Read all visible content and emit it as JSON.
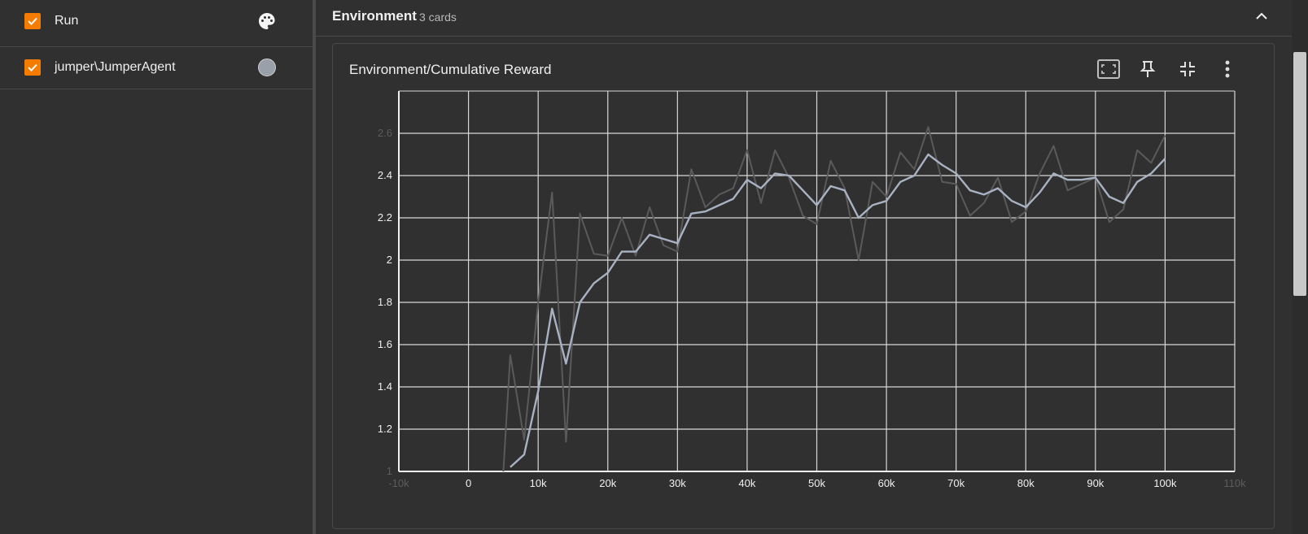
{
  "sidebar": {
    "runs": [
      {
        "label": "Run",
        "checked": true,
        "icon": "palette-icon"
      },
      {
        "label": "jumper\\JumperAgent",
        "checked": true,
        "color": "#9aa0aa"
      }
    ]
  },
  "group": {
    "title": "Environment",
    "count_label": "3 cards"
  },
  "card": {
    "title": "Environment/Cumulative Reward",
    "actions": [
      "fit-domain-icon",
      "pin-icon",
      "collapse-icon",
      "more-vert-icon"
    ]
  },
  "colors": {
    "accent": "#f57c00",
    "raw_series": "#5a5a5a",
    "smoothed_series": "#a8b2c2",
    "grid": "#d8d8d8",
    "background": "#303030"
  },
  "chart_data": {
    "type": "line",
    "title": "",
    "xlabel": "",
    "ylabel": "",
    "xlim": [
      -10000,
      110000
    ],
    "ylim": [
      1.0,
      2.8
    ],
    "x_ticks": [
      -10000,
      0,
      10000,
      20000,
      30000,
      40000,
      50000,
      60000,
      70000,
      80000,
      90000,
      100000,
      110000
    ],
    "x_tick_labels": [
      "-10k",
      "0",
      "10k",
      "20k",
      "30k",
      "40k",
      "50k",
      "60k",
      "70k",
      "80k",
      "90k",
      "100k",
      "110k"
    ],
    "y_ticks": [
      1.0,
      1.2,
      1.4,
      1.6,
      1.8,
      2.0,
      2.2,
      2.4,
      2.6
    ],
    "y_tick_labels": [
      "1",
      "1.2",
      "1.4",
      "1.6",
      "1.8",
      "2",
      "2.2",
      "2.4",
      "2.6"
    ],
    "grid": true,
    "series": [
      {
        "name": "jumper\\JumperAgent",
        "x": [
          5000,
          6000,
          8000,
          10000,
          12000,
          14000,
          16000,
          18000,
          20000,
          22000,
          24000,
          26000,
          28000,
          30000,
          32000,
          34000,
          36000,
          38000,
          40000,
          42000,
          44000,
          46000,
          48000,
          50000,
          52000,
          54000,
          56000,
          58000,
          60000,
          62000,
          64000,
          66000,
          68000,
          70000,
          72000,
          74000,
          76000,
          78000,
          80000,
          82000,
          84000,
          86000,
          88000,
          90000,
          92000,
          94000,
          96000,
          98000,
          100000
        ],
        "y": [
          1.0,
          1.55,
          1.15,
          1.8,
          2.32,
          1.14,
          2.22,
          2.03,
          2.02,
          2.2,
          2.02,
          2.25,
          2.07,
          2.04,
          2.43,
          2.25,
          2.31,
          2.34,
          2.52,
          2.27,
          2.52,
          2.39,
          2.21,
          2.17,
          2.47,
          2.34,
          2.0,
          2.37,
          2.3,
          2.51,
          2.43,
          2.63,
          2.37,
          2.36,
          2.21,
          2.27,
          2.39,
          2.18,
          2.23,
          2.41,
          2.54,
          2.33,
          2.36,
          2.39,
          2.18,
          2.24,
          2.52,
          2.46,
          2.59
        ]
      },
      {
        "name": "jumper\\JumperAgent (smoothed)",
        "x": [
          6000,
          8000,
          10000,
          12000,
          14000,
          16000,
          18000,
          20000,
          22000,
          24000,
          26000,
          28000,
          30000,
          32000,
          34000,
          36000,
          38000,
          40000,
          42000,
          44000,
          46000,
          48000,
          50000,
          52000,
          54000,
          56000,
          58000,
          60000,
          62000,
          64000,
          66000,
          68000,
          70000,
          72000,
          74000,
          76000,
          78000,
          80000,
          82000,
          84000,
          86000,
          88000,
          90000,
          92000,
          94000,
          96000,
          98000,
          100000
        ],
        "y": [
          1.02,
          1.08,
          1.38,
          1.77,
          1.51,
          1.8,
          1.89,
          1.94,
          2.04,
          2.04,
          2.12,
          2.1,
          2.08,
          2.22,
          2.23,
          2.26,
          2.29,
          2.38,
          2.34,
          2.41,
          2.4,
          2.33,
          2.26,
          2.35,
          2.33,
          2.2,
          2.26,
          2.28,
          2.37,
          2.4,
          2.5,
          2.45,
          2.41,
          2.33,
          2.31,
          2.34,
          2.28,
          2.25,
          2.32,
          2.41,
          2.38,
          2.38,
          2.39,
          2.3,
          2.27,
          2.37,
          2.41,
          2.48
        ]
      }
    ]
  }
}
